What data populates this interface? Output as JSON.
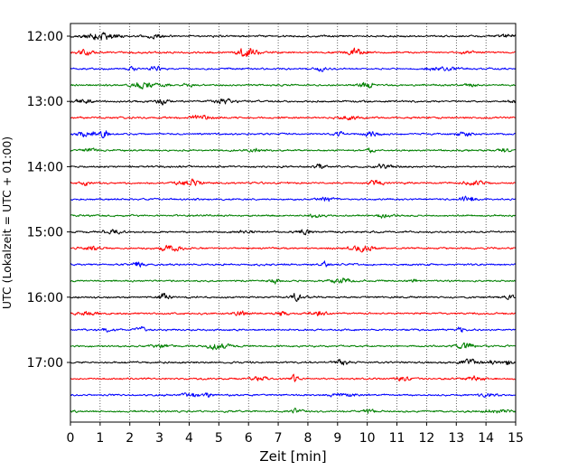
{
  "chart_data": {
    "type": "line",
    "xlabel": "Zeit  [min]",
    "ylabel": "UTC (Lokalzeit = UTC + 01:00)",
    "xlim": [
      0,
      15
    ],
    "x_ticks": [
      "0",
      "1",
      "2",
      "3",
      "4",
      "5",
      "6",
      "7",
      "8",
      "9",
      "10",
      "11",
      "12",
      "13",
      "14",
      "15"
    ],
    "y_ticks": [
      {
        "label": "12:00",
        "row": 0
      },
      {
        "label": "13:00",
        "row": 4
      },
      {
        "label": "14:00",
        "row": 8
      },
      {
        "label": "15:00",
        "row": 12
      },
      {
        "label": "16:00",
        "row": 16
      },
      {
        "label": "17:00",
        "row": 20
      }
    ],
    "grid": "vertical dotted at each minute",
    "row_count": 24,
    "row_interval_minutes": 15,
    "first_row_utc": "12:00",
    "row_colors": [
      "#000000",
      "#ff0000",
      "#0000ff",
      "#008000"
    ]
  }
}
